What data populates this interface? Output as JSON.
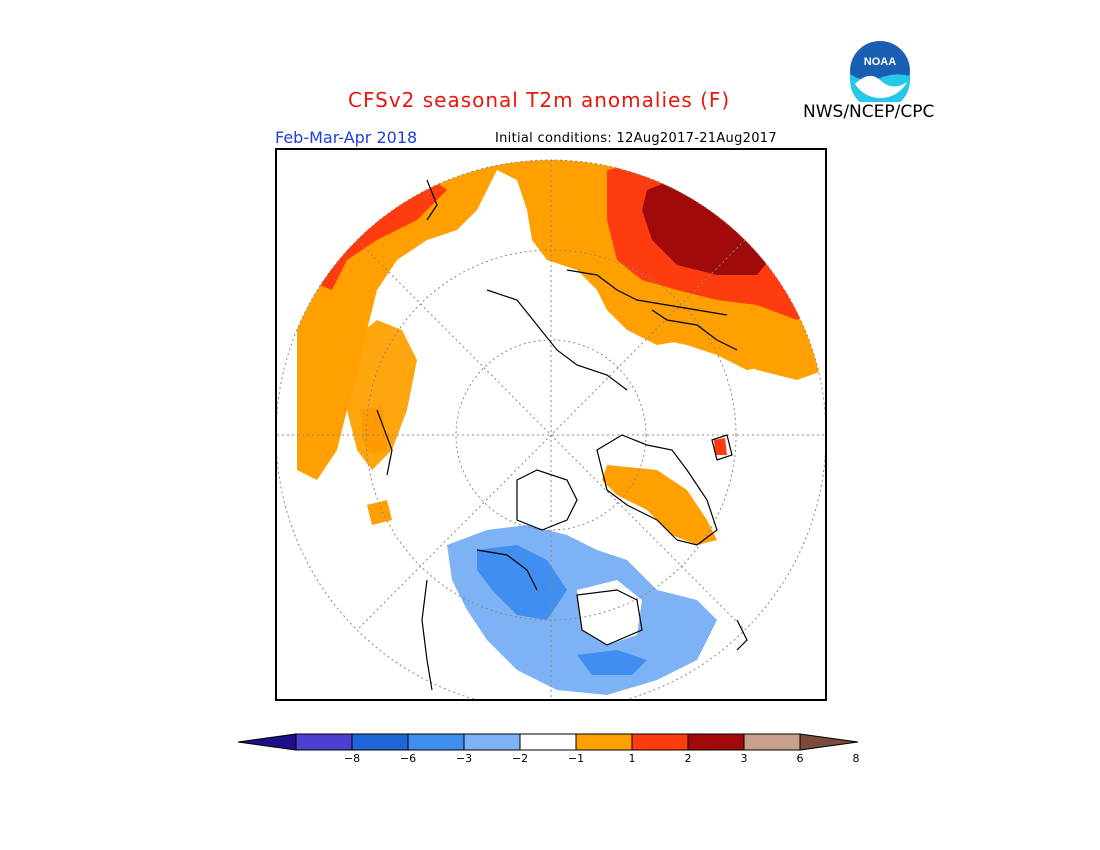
{
  "header": {
    "title": "CFSv2 seasonal T2m anomalies (F)",
    "agency": "NWS/NCEP/CPC",
    "season": "Feb-Mar-Apr 2018",
    "initial_conditions": "Initial conditions: 12Aug2017-21Aug2017"
  },
  "logo": {
    "text": "NOAA",
    "icon": "noaa-logo-icon"
  },
  "colorbar": {
    "segments": [
      {
        "color": "#1b0f8a"
      },
      {
        "color": "#4a3fcf"
      },
      {
        "color": "#1f66d6"
      },
      {
        "color": "#3f8ef0"
      },
      {
        "color": "#7db3f5"
      },
      {
        "color": "#ffffff"
      },
      {
        "color": "#ffa000"
      },
      {
        "color": "#ff3c0f"
      },
      {
        "color": "#a00a0a"
      },
      {
        "color": "#c7a08e"
      },
      {
        "color": "#7a4a3a"
      }
    ],
    "ticks": [
      {
        "label": "−8"
      },
      {
        "label": "−6"
      },
      {
        "label": "−3"
      },
      {
        "label": "−2"
      },
      {
        "label": "−1"
      },
      {
        "label": "1"
      },
      {
        "label": "2"
      },
      {
        "label": "3"
      },
      {
        "label": "6"
      },
      {
        "label": "8"
      }
    ]
  },
  "colors": {
    "title": "#e8170c",
    "season": "#1f3ee0",
    "warm1": "#ffa000",
    "warm2": "#ff3c0f",
    "warm3": "#a00a0a",
    "cool1": "#7db3f5",
    "cool2": "#3f8ef0"
  }
}
